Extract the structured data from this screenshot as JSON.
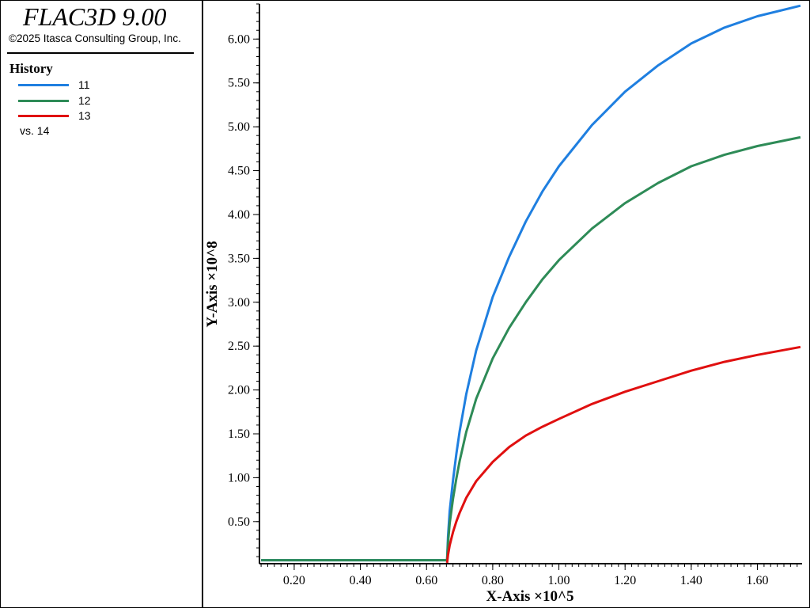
{
  "app": {
    "title": "FLAC3D 9.00",
    "copyright": "©2025 Itasca Consulting Group, Inc."
  },
  "legend": {
    "heading": "History",
    "items": [
      {
        "label": "11",
        "color": "#1f7fe0"
      },
      {
        "label": "12",
        "color": "#2e8b57"
      },
      {
        "label": "13",
        "color": "#e01010"
      }
    ],
    "vs_label": "vs. 14"
  },
  "chart_data": {
    "type": "line",
    "xlabel": "X-Axis ×10^5",
    "ylabel": "Y-Axis ×10^8",
    "xlim": [
      0.095,
      1.735
    ],
    "ylim": [
      0.02,
      6.4
    ],
    "xticks": [
      "0.20",
      "0.40",
      "0.60",
      "0.80",
      "1.00",
      "1.20",
      "1.40",
      "1.60"
    ],
    "yticks": [
      "0.50",
      "1.00",
      "1.50",
      "2.00",
      "2.50",
      "3.00",
      "3.50",
      "4.00",
      "4.50",
      "5.00",
      "5.50",
      "6.00"
    ],
    "grid": false,
    "series": [
      {
        "name": "11",
        "color": "#1f7fe0",
        "x": [
          0.1,
          0.662,
          0.665,
          0.67,
          0.68,
          0.69,
          0.7,
          0.72,
          0.75,
          0.8,
          0.85,
          0.9,
          0.95,
          1.0,
          1.1,
          1.2,
          1.3,
          1.4,
          1.5,
          1.6,
          1.73
        ],
        "y": [
          0.06,
          0.06,
          0.33,
          0.62,
          0.97,
          1.27,
          1.53,
          1.95,
          2.45,
          3.06,
          3.52,
          3.92,
          4.26,
          4.55,
          5.02,
          5.4,
          5.7,
          5.95,
          6.13,
          6.26,
          6.38
        ]
      },
      {
        "name": "12",
        "color": "#2e8b57",
        "x": [
          0.1,
          0.662,
          0.665,
          0.67,
          0.68,
          0.69,
          0.7,
          0.72,
          0.75,
          0.8,
          0.85,
          0.9,
          0.95,
          1.0,
          1.1,
          1.2,
          1.3,
          1.4,
          1.5,
          1.6,
          1.73
        ],
        "y": [
          0.06,
          0.06,
          0.26,
          0.48,
          0.76,
          0.99,
          1.19,
          1.52,
          1.9,
          2.36,
          2.71,
          3.0,
          3.26,
          3.48,
          3.84,
          4.13,
          4.36,
          4.55,
          4.68,
          4.78,
          4.88
        ]
      },
      {
        "name": "13",
        "color": "#e01010",
        "x": [
          0.662,
          0.665,
          0.67,
          0.68,
          0.69,
          0.7,
          0.72,
          0.75,
          0.8,
          0.85,
          0.9,
          0.95,
          1.0,
          1.1,
          1.2,
          1.3,
          1.4,
          1.5,
          1.6,
          1.73
        ],
        "y": [
          0.03,
          0.12,
          0.23,
          0.38,
          0.5,
          0.6,
          0.77,
          0.96,
          1.18,
          1.35,
          1.48,
          1.58,
          1.67,
          1.84,
          1.98,
          2.1,
          2.22,
          2.32,
          2.4,
          2.49
        ]
      }
    ]
  }
}
